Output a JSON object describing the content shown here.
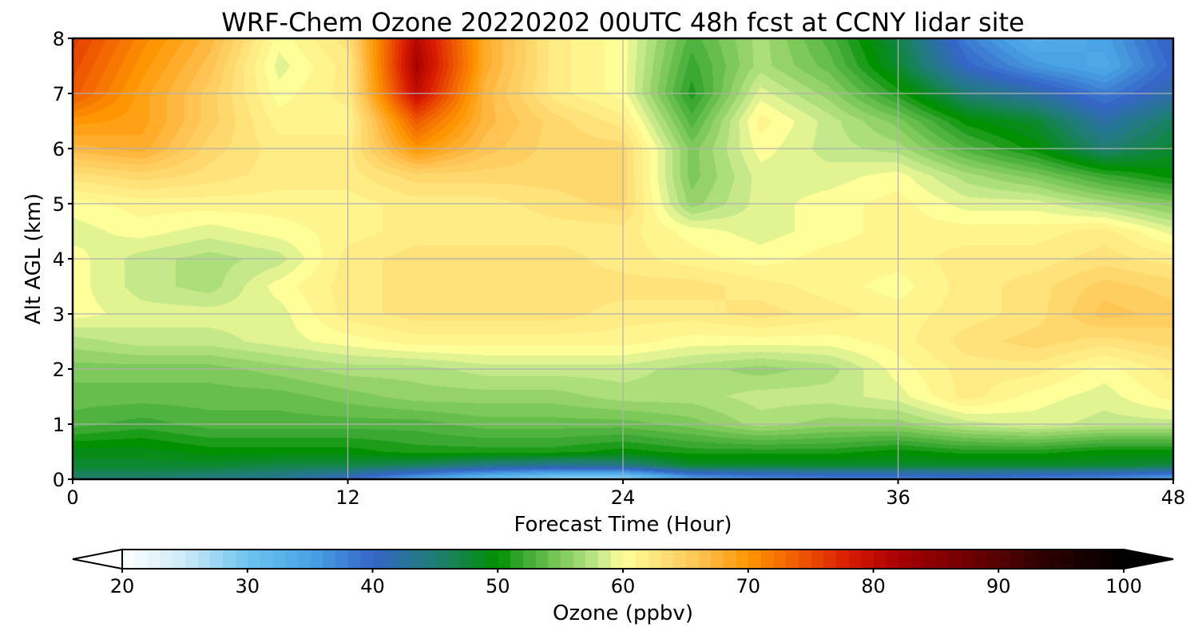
{
  "chart_data": {
    "type": "heatmap",
    "title": "WRF-Chem Ozone  20220202 00UTC 48h fcst at CCNY lidar site",
    "xlabel": "Forecast Time (Hour)",
    "ylabel": "Alt AGL (km)",
    "xlim": [
      0,
      48
    ],
    "ylim": [
      0,
      8
    ],
    "x_ticks": [
      "0",
      "12",
      "24",
      "36",
      "48"
    ],
    "y_ticks": [
      "0",
      "1",
      "2",
      "3",
      "4",
      "5",
      "6",
      "7",
      "8"
    ],
    "grid": true,
    "z_label": "Ozone  (ppbv)",
    "z_range": [
      20,
      100
    ],
    "colorbar": {
      "orientation": "horizontal",
      "position": "bottom",
      "extend": "both",
      "ticks": [
        "20",
        "30",
        "40",
        "50",
        "60",
        "70",
        "80",
        "90",
        "100"
      ],
      "label": "Ozone  (ppbv)"
    },
    "x": [
      0,
      3,
      6,
      9,
      12,
      15,
      18,
      21,
      24,
      27,
      30,
      33,
      36,
      39,
      42,
      45,
      48
    ],
    "y": [
      0,
      0.25,
      0.5,
      1,
      1.5,
      2,
      2.5,
      3,
      3.5,
      4,
      4.5,
      5,
      5.5,
      6,
      6.5,
      7,
      7.5,
      8
    ],
    "z": [
      [
        45,
        45,
        44,
        43,
        40,
        34,
        30,
        27,
        26,
        34,
        36,
        37,
        37,
        38,
        37,
        36,
        34
      ],
      [
        48,
        48,
        48,
        47,
        47,
        46,
        44,
        43,
        44,
        48,
        48,
        48,
        48,
        48,
        48,
        48,
        47
      ],
      [
        49,
        49,
        50,
        50,
        50,
        51,
        51,
        51,
        50,
        51,
        51,
        51,
        50,
        51,
        51,
        50,
        50
      ],
      [
        53,
        52,
        53,
        53,
        53,
        53,
        54,
        54,
        54,
        55,
        57,
        56,
        56,
        58,
        59,
        58,
        58
      ],
      [
        54,
        54,
        54,
        54,
        55,
        56,
        56,
        56,
        57,
        57,
        58,
        58,
        59,
        62,
        60,
        59,
        61
      ],
      [
        55,
        55,
        55,
        56,
        57,
        57,
        58,
        58,
        58,
        57,
        56,
        57,
        60,
        62,
        62,
        60,
        62
      ],
      [
        57,
        58,
        58,
        59,
        60,
        61,
        61,
        61,
        61,
        60,
        60,
        60,
        61,
        63,
        64,
        63,
        64
      ],
      [
        60,
        59,
        59,
        59,
        62,
        63,
        63,
        63,
        62,
        62,
        63,
        62,
        61,
        62,
        63,
        66,
        65
      ],
      [
        60,
        58,
        57,
        60,
        62,
        63,
        63,
        63,
        63,
        63,
        62,
        61,
        60,
        62,
        63,
        65,
        64
      ],
      [
        60,
        58,
        57,
        58,
        62,
        63,
        63,
        63,
        62,
        61,
        60,
        61,
        61,
        62,
        62,
        63,
        62
      ],
      [
        59,
        60,
        59,
        60,
        61,
        62,
        62,
        62,
        62,
        60,
        59,
        60,
        61,
        61,
        61,
        62,
        59
      ],
      [
        60,
        61,
        61,
        61,
        61,
        62,
        62,
        63,
        64,
        56,
        59,
        60,
        61,
        59,
        59,
        57,
        55
      ],
      [
        63,
        64,
        63,
        62,
        62,
        64,
        64,
        64,
        64,
        55,
        59,
        59,
        60,
        57,
        55,
        52,
        50
      ],
      [
        67,
        68,
        64,
        62,
        62,
        70,
        66,
        64,
        64,
        55,
        60,
        58,
        57,
        53,
        50,
        45,
        48
      ],
      [
        70,
        69,
        65,
        61,
        61,
        74,
        67,
        64,
        62,
        53,
        61,
        58,
        55,
        50,
        48,
        42,
        46
      ],
      [
        74,
        69,
        65,
        60,
        62,
        80,
        67,
        62,
        60,
        51,
        59,
        56,
        51,
        45,
        42,
        38,
        42
      ],
      [
        75,
        70,
        66,
        59,
        62,
        82,
        68,
        62,
        60,
        52,
        57,
        54,
        48,
        40,
        36,
        34,
        40
      ],
      [
        76,
        71,
        67,
        60,
        63,
        81,
        68,
        62,
        60,
        53,
        57,
        53,
        47,
        38,
        33,
        35,
        41
      ]
    ]
  }
}
